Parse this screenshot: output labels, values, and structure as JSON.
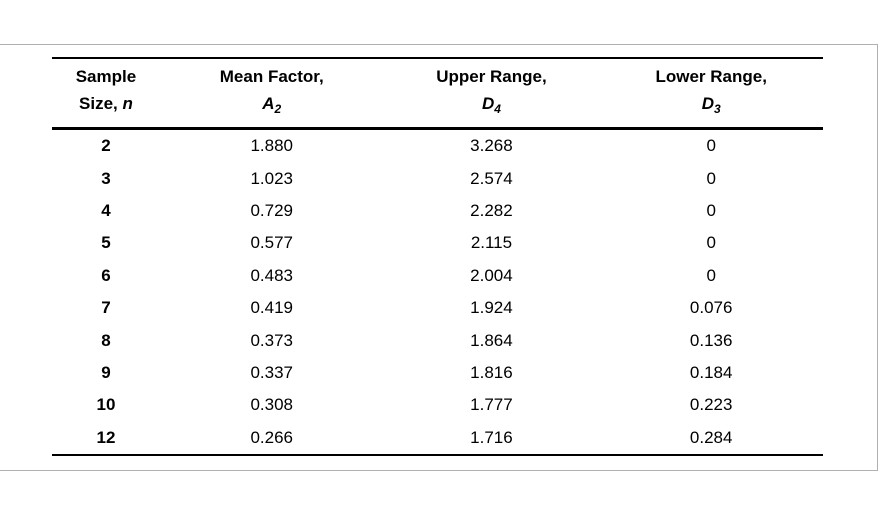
{
  "frame": {
    "border_color": "#b0b0b0",
    "background_color": "#ffffff"
  },
  "table": {
    "text_color": "#000000",
    "rule_color": "#000000",
    "columns": [
      {
        "line1": "Sample",
        "line2_text": "Size, ",
        "var": "n",
        "sub": ""
      },
      {
        "line1": "Mean Factor,",
        "line2_text": "",
        "var": "A",
        "sub": "2"
      },
      {
        "line1": "Upper Range,",
        "line2_text": "",
        "var": "D",
        "sub": "4"
      },
      {
        "line1": "Lower Range,",
        "line2_text": "",
        "var": "D",
        "sub": "3"
      }
    ],
    "rows": [
      [
        "2",
        "1.880",
        "3.268",
        "0"
      ],
      [
        "3",
        "1.023",
        "2.574",
        "0"
      ],
      [
        "4",
        "0.729",
        "2.282",
        "0"
      ],
      [
        "5",
        "0.577",
        "2.115",
        "0"
      ],
      [
        "6",
        "0.483",
        "2.004",
        "0"
      ],
      [
        "7",
        "0.419",
        "1.924",
        "0.076"
      ],
      [
        "8",
        "0.373",
        "1.864",
        "0.136"
      ],
      [
        "9",
        "0.337",
        "1.816",
        "0.184"
      ],
      [
        "10",
        "0.308",
        "1.777",
        "0.223"
      ],
      [
        "12",
        "0.266",
        "1.716",
        "0.284"
      ]
    ]
  }
}
